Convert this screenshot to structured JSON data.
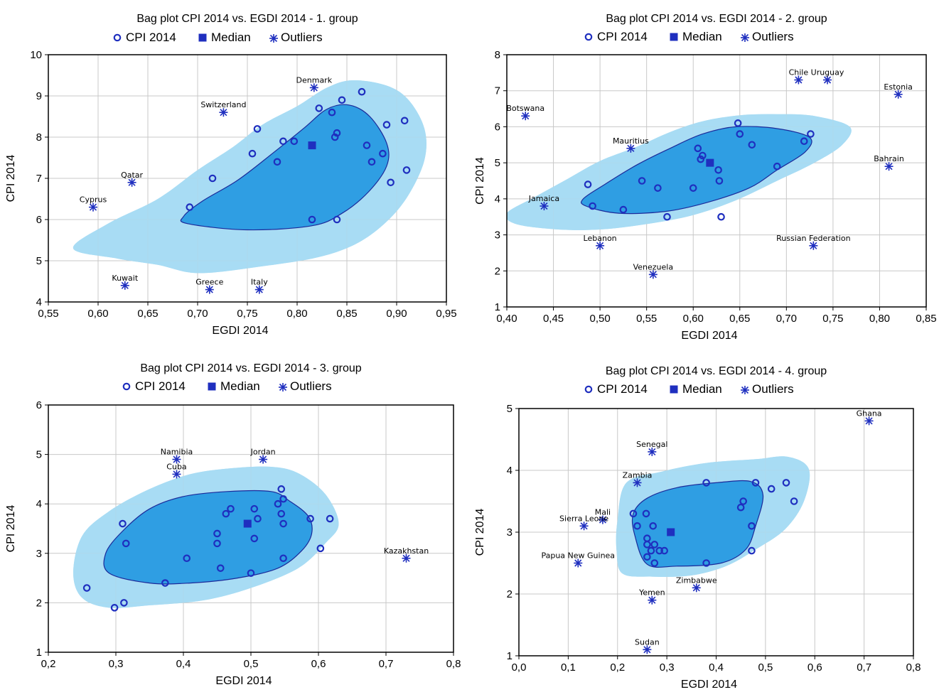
{
  "colors": {
    "outer_hull": "#a8dcf3",
    "bag": "#2f9ee3",
    "bag_stroke": "#1b2a9a",
    "points": "#1f2fbf",
    "grid": "#c8c8c8",
    "frame": "#000000"
  },
  "chart_data": [
    {
      "type": "scatter",
      "title": "Bag plot CPI 2014 vs. EGDI 2014 - 1. group",
      "xlabel": "EGDI 2014",
      "ylabel": "CPI 2014",
      "legend": [
        "CPI 2014",
        "Median",
        "Outliers"
      ],
      "legend_placement": "top",
      "grid": true,
      "xlim": [
        0.55,
        0.95
      ],
      "ylim": [
        4,
        10
      ],
      "xticks": [
        "0,55",
        "0,60",
        "0,65",
        "0,70",
        "0,75",
        "0,80",
        "0,85",
        "0,90",
        "0,95"
      ],
      "yticks": [
        "4",
        "5",
        "6",
        "7",
        "8",
        "9",
        "10"
      ],
      "xtick_values": [
        0.55,
        0.6,
        0.65,
        0.7,
        0.75,
        0.8,
        0.85,
        0.9,
        0.95
      ],
      "ytick_values": [
        4,
        5,
        6,
        7,
        8,
        9,
        10
      ],
      "points": [
        [
          0.692,
          6.3
        ],
        [
          0.715,
          7.0
        ],
        [
          0.755,
          7.6
        ],
        [
          0.76,
          8.2
        ],
        [
          0.78,
          7.4
        ],
        [
          0.786,
          7.9
        ],
        [
          0.797,
          7.9
        ],
        [
          0.815,
          6.0
        ],
        [
          0.822,
          8.7
        ],
        [
          0.835,
          8.6
        ],
        [
          0.838,
          8.0
        ],
        [
          0.84,
          6.0
        ],
        [
          0.84,
          8.1
        ],
        [
          0.845,
          8.9
        ],
        [
          0.865,
          9.1
        ],
        [
          0.87,
          7.8
        ],
        [
          0.875,
          7.4
        ],
        [
          0.886,
          7.6
        ],
        [
          0.89,
          8.3
        ],
        [
          0.894,
          6.9
        ],
        [
          0.908,
          8.4
        ],
        [
          0.91,
          7.2
        ]
      ],
      "median": [
        0.815,
        7.8
      ],
      "outliers": [
        {
          "label": "Denmark",
          "x": 0.817,
          "y": 9.2
        },
        {
          "label": "Switzerland",
          "x": 0.726,
          "y": 8.6
        },
        {
          "label": "Qatar",
          "x": 0.634,
          "y": 6.9
        },
        {
          "label": "Cyprus",
          "x": 0.595,
          "y": 6.3
        },
        {
          "label": "Kuwait",
          "x": 0.627,
          "y": 4.4
        },
        {
          "label": "Greece",
          "x": 0.712,
          "y": 4.3
        },
        {
          "label": "Italy",
          "x": 0.762,
          "y": 4.3
        }
      ],
      "bag": [
        [
          0.686,
          6.08
        ],
        [
          0.705,
          6.45
        ],
        [
          0.74,
          6.95
        ],
        [
          0.775,
          7.6
        ],
        [
          0.807,
          8.22
        ],
        [
          0.83,
          8.68
        ],
        [
          0.852,
          8.78
        ],
        [
          0.873,
          8.5
        ],
        [
          0.89,
          7.85
        ],
        [
          0.89,
          7.3
        ],
        [
          0.872,
          6.68
        ],
        [
          0.845,
          6.15
        ],
        [
          0.815,
          5.85
        ],
        [
          0.75,
          5.75
        ],
        [
          0.69,
          5.9
        ]
      ],
      "fence": [
        [
          0.575,
          5.3
        ],
        [
          0.61,
          5.9
        ],
        [
          0.66,
          6.5
        ],
        [
          0.7,
          7.2
        ],
        [
          0.735,
          7.75
        ],
        [
          0.765,
          8.3
        ],
        [
          0.8,
          8.75
        ],
        [
          0.83,
          9.2
        ],
        [
          0.856,
          9.38
        ],
        [
          0.89,
          9.25
        ],
        [
          0.912,
          8.9
        ],
        [
          0.928,
          8.2
        ],
        [
          0.928,
          7.45
        ],
        [
          0.912,
          6.6
        ],
        [
          0.89,
          5.95
        ],
        [
          0.86,
          5.42
        ],
        [
          0.82,
          5.08
        ],
        [
          0.76,
          4.85
        ],
        [
          0.7,
          4.7
        ],
        [
          0.66,
          4.9
        ],
        [
          0.62,
          5.05
        ]
      ]
    },
    {
      "type": "scatter",
      "title": "Bag plot CPI 2014 vs. EGDI 2014 - 2. group",
      "xlabel": "EGDI 2014",
      "ylabel": "CPI 2014",
      "legend": [
        "CPI 2014",
        "Median",
        "Outliers"
      ],
      "legend_placement": "top",
      "grid": true,
      "xlim": [
        0.4,
        0.85
      ],
      "ylim": [
        1,
        8
      ],
      "xticks": [
        "0,40",
        "0,45",
        "0,50",
        "0,55",
        "0,60",
        "0,65",
        "0,70",
        "0,75",
        "0,80",
        "0,85"
      ],
      "yticks": [
        "1",
        "2",
        "3",
        "4",
        "5",
        "6",
        "7",
        "8"
      ],
      "xtick_values": [
        0.4,
        0.45,
        0.5,
        0.55,
        0.6,
        0.65,
        0.7,
        0.75,
        0.8,
        0.85
      ],
      "ytick_values": [
        1,
        2,
        3,
        4,
        5,
        6,
        7,
        8
      ],
      "points": [
        [
          0.487,
          4.4
        ],
        [
          0.492,
          3.8
        ],
        [
          0.525,
          3.7
        ],
        [
          0.545,
          4.5
        ],
        [
          0.562,
          4.3
        ],
        [
          0.572,
          3.5
        ],
        [
          0.6,
          4.3
        ],
        [
          0.605,
          5.4
        ],
        [
          0.608,
          5.1
        ],
        [
          0.61,
          5.2
        ],
        [
          0.627,
          4.8
        ],
        [
          0.628,
          4.5
        ],
        [
          0.63,
          3.5
        ],
        [
          0.648,
          6.1
        ],
        [
          0.65,
          5.8
        ],
        [
          0.663,
          5.5
        ],
        [
          0.69,
          4.9
        ],
        [
          0.719,
          5.6
        ],
        [
          0.726,
          5.8
        ]
      ],
      "median": [
        0.618,
        5.0
      ],
      "outliers": [
        {
          "label": "Botswana",
          "x": 0.42,
          "y": 6.3
        },
        {
          "label": "Chile",
          "x": 0.713,
          "y": 7.3
        },
        {
          "label": "Uruguay",
          "x": 0.744,
          "y": 7.3
        },
        {
          "label": "Estonia",
          "x": 0.82,
          "y": 6.9
        },
        {
          "label": "Mauritius",
          "x": 0.533,
          "y": 5.4
        },
        {
          "label": "Bahrain",
          "x": 0.81,
          "y": 4.9
        },
        {
          "label": "Jamaica",
          "x": 0.44,
          "y": 3.8
        },
        {
          "label": "Lebanon",
          "x": 0.5,
          "y": 2.7
        },
        {
          "label": "Russian Federation",
          "x": 0.729,
          "y": 2.7
        },
        {
          "label": "Venezuela",
          "x": 0.557,
          "y": 1.9
        }
      ],
      "bag": [
        [
          0.482,
          4.0
        ],
        [
          0.505,
          4.4
        ],
        [
          0.54,
          4.95
        ],
        [
          0.575,
          5.4
        ],
        [
          0.61,
          5.8
        ],
        [
          0.646,
          6.0
        ],
        [
          0.69,
          5.95
        ],
        [
          0.725,
          5.7
        ],
        [
          0.72,
          5.3
        ],
        [
          0.69,
          4.8
        ],
        [
          0.66,
          4.3
        ],
        [
          0.615,
          3.9
        ],
        [
          0.57,
          3.65
        ],
        [
          0.52,
          3.6
        ],
        [
          0.485,
          3.8
        ]
      ],
      "fence": [
        [
          0.4,
          3.6
        ],
        [
          0.43,
          4.05
        ],
        [
          0.465,
          4.55
        ],
        [
          0.5,
          5.05
        ],
        [
          0.54,
          5.45
        ],
        [
          0.575,
          5.85
        ],
        [
          0.61,
          6.15
        ],
        [
          0.65,
          6.32
        ],
        [
          0.69,
          6.35
        ],
        [
          0.73,
          6.3
        ],
        [
          0.768,
          6.0
        ],
        [
          0.76,
          5.5
        ],
        [
          0.73,
          5.0
        ],
        [
          0.69,
          4.5
        ],
        [
          0.645,
          3.95
        ],
        [
          0.6,
          3.55
        ],
        [
          0.55,
          3.3
        ],
        [
          0.5,
          3.15
        ],
        [
          0.455,
          3.15
        ],
        [
          0.41,
          3.3
        ]
      ]
    },
    {
      "type": "scatter",
      "title": "Bag plot CPI 2014 vs. EGDI 2014 - 3. group",
      "xlabel": "EGDI 2014",
      "ylabel": "CPI 2014",
      "legend": [
        "CPI 2014",
        "Median",
        "Outliers"
      ],
      "legend_placement": "top",
      "grid": true,
      "xlim": [
        0.2,
        0.8
      ],
      "ylim": [
        1,
        6
      ],
      "xticks": [
        "0,2",
        "0,3",
        "0,4",
        "0,5",
        "0,6",
        "0,7",
        "0,8"
      ],
      "yticks": [
        "1",
        "2",
        "3",
        "4",
        "5",
        "6"
      ],
      "xtick_values": [
        0.2,
        0.3,
        0.4,
        0.5,
        0.6,
        0.7,
        0.8
      ],
      "ytick_values": [
        1,
        2,
        3,
        4,
        5,
        6
      ],
      "points": [
        [
          0.257,
          2.3
        ],
        [
          0.298,
          1.9
        ],
        [
          0.31,
          3.6
        ],
        [
          0.312,
          2.0
        ],
        [
          0.315,
          3.2
        ],
        [
          0.373,
          2.4
        ],
        [
          0.405,
          2.9
        ],
        [
          0.45,
          3.4
        ],
        [
          0.45,
          3.2
        ],
        [
          0.455,
          2.7
        ],
        [
          0.463,
          3.8
        ],
        [
          0.47,
          3.9
        ],
        [
          0.5,
          2.6
        ],
        [
          0.505,
          3.3
        ],
        [
          0.505,
          3.9
        ],
        [
          0.51,
          3.7
        ],
        [
          0.54,
          4.0
        ],
        [
          0.545,
          4.3
        ],
        [
          0.545,
          3.8
        ],
        [
          0.548,
          4.1
        ],
        [
          0.548,
          3.6
        ],
        [
          0.548,
          2.9
        ],
        [
          0.588,
          3.7
        ],
        [
          0.603,
          3.1
        ],
        [
          0.617,
          3.7
        ]
      ],
      "median": [
        0.495,
        3.6
      ],
      "outliers": [
        {
          "label": "Namibia",
          "x": 0.39,
          "y": 4.9
        },
        {
          "label": "Jordan",
          "x": 0.518,
          "y": 4.9
        },
        {
          "label": "Cuba",
          "x": 0.39,
          "y": 4.6
        },
        {
          "label": "Kazakhstan",
          "x": 0.73,
          "y": 2.9
        }
      ],
      "bag": [
        [
          0.285,
          3.0
        ],
        [
          0.31,
          3.45
        ],
        [
          0.35,
          3.9
        ],
        [
          0.4,
          4.15
        ],
        [
          0.465,
          4.25
        ],
        [
          0.53,
          4.25
        ],
        [
          0.558,
          4.05
        ],
        [
          0.585,
          3.75
        ],
        [
          0.59,
          3.4
        ],
        [
          0.575,
          3.05
        ],
        [
          0.54,
          2.7
        ],
        [
          0.48,
          2.5
        ],
        [
          0.41,
          2.4
        ],
        [
          0.35,
          2.4
        ],
        [
          0.29,
          2.6
        ]
      ],
      "fence": [
        [
          0.237,
          2.6
        ],
        [
          0.25,
          3.35
        ],
        [
          0.29,
          3.85
        ],
        [
          0.35,
          4.3
        ],
        [
          0.41,
          4.6
        ],
        [
          0.47,
          4.72
        ],
        [
          0.53,
          4.75
        ],
        [
          0.57,
          4.62
        ],
        [
          0.61,
          4.2
        ],
        [
          0.63,
          3.6
        ],
        [
          0.61,
          3.2
        ],
        [
          0.57,
          2.7
        ],
        [
          0.5,
          2.3
        ],
        [
          0.43,
          2.05
        ],
        [
          0.35,
          1.95
        ],
        [
          0.29,
          1.9
        ],
        [
          0.25,
          2.1
        ]
      ]
    },
    {
      "type": "scatter",
      "title": "Bag plot CPI 2014 vs. EGDI 2014 - 4. group",
      "xlabel": "EGDI 2014",
      "ylabel": "CPI 2014",
      "legend": [
        "CPI 2014",
        "Median",
        "Outliers"
      ],
      "legend_placement": "top",
      "grid": true,
      "xlim": [
        0.0,
        0.8
      ],
      "ylim": [
        1,
        5
      ],
      "xticks": [
        "0,0",
        "0,1",
        "0,2",
        "0,3",
        "0,4",
        "0,5",
        "0,6",
        "0,7",
        "0,8"
      ],
      "yticks": [
        "1",
        "2",
        "3",
        "4",
        "5"
      ],
      "xtick_values": [
        0.0,
        0.1,
        0.2,
        0.3,
        0.4,
        0.5,
        0.6,
        0.7,
        0.8
      ],
      "ytick_values": [
        1,
        2,
        3,
        4,
        5
      ],
      "points": [
        [
          0.232,
          3.3
        ],
        [
          0.24,
          3.1
        ],
        [
          0.258,
          3.3
        ],
        [
          0.26,
          2.9
        ],
        [
          0.26,
          2.8
        ],
        [
          0.26,
          2.6
        ],
        [
          0.268,
          2.7
        ],
        [
          0.272,
          3.1
        ],
        [
          0.275,
          2.8
        ],
        [
          0.275,
          2.5
        ],
        [
          0.285,
          2.7
        ],
        [
          0.295,
          2.7
        ],
        [
          0.38,
          3.8
        ],
        [
          0.38,
          2.5
        ],
        [
          0.45,
          3.4
        ],
        [
          0.455,
          3.5
        ],
        [
          0.472,
          3.1
        ],
        [
          0.472,
          2.7
        ],
        [
          0.48,
          3.8
        ],
        [
          0.512,
          3.7
        ],
        [
          0.542,
          3.8
        ],
        [
          0.558,
          3.5
        ]
      ],
      "median": [
        0.308,
        3.0
      ],
      "outliers": [
        {
          "label": "Ghana",
          "x": 0.71,
          "y": 4.8
        },
        {
          "label": "Senegal",
          "x": 0.27,
          "y": 4.3
        },
        {
          "label": "Zambia",
          "x": 0.24,
          "y": 3.8
        },
        {
          "label": "Mali",
          "x": 0.17,
          "y": 3.2
        },
        {
          "label": "Sierra Leone",
          "x": 0.132,
          "y": 3.1
        },
        {
          "label": "Papua New Guinea",
          "x": 0.12,
          "y": 2.5
        },
        {
          "label": "Zimbabwe",
          "x": 0.36,
          "y": 2.1
        },
        {
          "label": "Yemen",
          "x": 0.27,
          "y": 1.9
        },
        {
          "label": "Sudan",
          "x": 0.26,
          "y": 1.1
        }
      ],
      "bag": [
        [
          0.232,
          3.3
        ],
        [
          0.26,
          3.55
        ],
        [
          0.32,
          3.72
        ],
        [
          0.4,
          3.8
        ],
        [
          0.47,
          3.82
        ],
        [
          0.495,
          3.6
        ],
        [
          0.48,
          3.1
        ],
        [
          0.46,
          2.72
        ],
        [
          0.41,
          2.5
        ],
        [
          0.32,
          2.45
        ],
        [
          0.26,
          2.48
        ],
        [
          0.235,
          2.95
        ]
      ],
      "fence": [
        [
          0.2,
          3.2
        ],
        [
          0.218,
          3.8
        ],
        [
          0.29,
          3.98
        ],
        [
          0.38,
          4.12
        ],
        [
          0.48,
          4.18
        ],
        [
          0.545,
          4.22
        ],
        [
          0.588,
          4.02
        ],
        [
          0.578,
          3.5
        ],
        [
          0.54,
          3.05
        ],
        [
          0.48,
          2.72
        ],
        [
          0.42,
          2.45
        ],
        [
          0.35,
          2.3
        ],
        [
          0.27,
          2.28
        ],
        [
          0.21,
          2.33
        ],
        [
          0.198,
          2.7
        ]
      ]
    }
  ]
}
